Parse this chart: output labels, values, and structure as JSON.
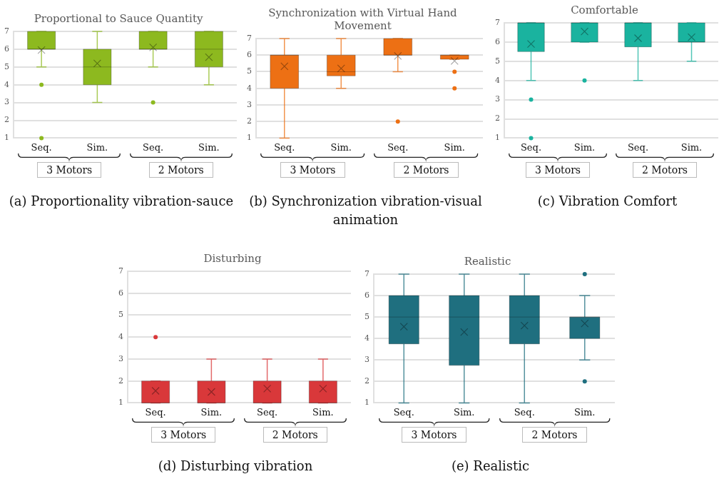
{
  "chart_data": [
    {
      "type": "box",
      "title": "Proportional to Sauce Quantity",
      "categories": [
        "Seq.",
        "Sim.",
        "Seq.",
        "Sim."
      ],
      "color": "#8db91f",
      "ylim": [
        1,
        7
      ],
      "yticks": [
        1,
        2,
        3,
        4,
        5,
        6,
        7
      ],
      "grid": "y",
      "boxes": [
        {
          "low": 5,
          "q1": 6,
          "median": 6,
          "q3": 7,
          "high": 7,
          "mean": 5.95,
          "outliers": [
            4,
            1
          ]
        },
        {
          "low": 3,
          "q1": 4,
          "median": 5,
          "q3": 6,
          "high": 7,
          "mean": 5.2
        },
        {
          "low": 5,
          "q1": 6,
          "median": 6,
          "q3": 7,
          "high": 7,
          "mean": 6.1,
          "outliers": [
            3
          ]
        },
        {
          "low": 4,
          "q1": 5,
          "median": 6,
          "q3": 7,
          "high": 7,
          "mean": 5.55
        }
      ],
      "annotations": [
        "3 Motors",
        "2 Motors",
        "(a) Proportionality vibration-sauce"
      ]
    },
    {
      "type": "box",
      "title": "Synchronization with Virtual Hand Movement",
      "categories": [
        "Seq.",
        "Sim.",
        "Seq.",
        "Sim."
      ],
      "color": "#ed7014",
      "ylim": [
        1,
        7
      ],
      "yticks": [
        1,
        2,
        3,
        4,
        5,
        6,
        7
      ],
      "grid": "y",
      "boxes": [
        {
          "low": 1,
          "q1": 4,
          "median": 6,
          "q3": 6,
          "high": 7,
          "mean": 5.33
        },
        {
          "low": 4,
          "q1": 4.75,
          "median": 5,
          "q3": 6,
          "high": 7,
          "mean": 5.2
        },
        {
          "low": 5,
          "q1": 6,
          "median": 6,
          "q3": 7,
          "high": 7,
          "mean": 5.95,
          "outliers": [
            2
          ]
        },
        {
          "low": 5.75,
          "q1": 5.75,
          "median": 6,
          "q3": 6,
          "high": 6,
          "mean": 5.65,
          "outliers": [
            5,
            4
          ]
        }
      ],
      "annotations": [
        "3 Motors",
        "2 Motors",
        "(b) Synchronization vibration-visual animation"
      ]
    },
    {
      "type": "box",
      "title": "Comfortable",
      "categories": [
        "Seq.",
        "Sim.",
        "Seq.",
        "Sim."
      ],
      "color": "#1ab39f",
      "ylim": [
        1,
        7
      ],
      "yticks": [
        1,
        2,
        3,
        4,
        5,
        6,
        7
      ],
      "grid": "y",
      "boxes": [
        {
          "low": 4,
          "q1": 5.5,
          "median": 7,
          "q3": 7,
          "high": 7,
          "mean": 5.9,
          "outliers": [
            3,
            1
          ]
        },
        {
          "low": 6,
          "q1": 6,
          "median": 7,
          "q3": 7,
          "high": 7,
          "mean": 6.55,
          "outliers": [
            4
          ]
        },
        {
          "low": 4,
          "q1": 5.75,
          "median": 7,
          "q3": 7,
          "high": 7,
          "mean": 6.2
        },
        {
          "low": 5,
          "q1": 6,
          "median": 6,
          "q3": 7,
          "high": 7,
          "mean": 6.25
        }
      ],
      "annotations": [
        "3 Motors",
        "2 Motors",
        "(c) Vibration Comfort"
      ]
    },
    {
      "type": "box",
      "title": "Disturbing",
      "categories": [
        "Seq.",
        "Sim.",
        "Seq.",
        "Sim."
      ],
      "color": "#d9383a",
      "ylim": [
        1,
        7
      ],
      "yticks": [
        1,
        2,
        3,
        4,
        5,
        6,
        7
      ],
      "grid": "y",
      "boxes": [
        {
          "low": 1,
          "q1": 1,
          "median": 1,
          "q3": 2,
          "high": 2,
          "mean": 1.55,
          "outliers": [
            4
          ]
        },
        {
          "low": 1,
          "q1": 1,
          "median": 1,
          "q3": 2,
          "high": 3,
          "mean": 1.5
        },
        {
          "low": 1,
          "q1": 1,
          "median": 1,
          "q3": 2,
          "high": 3,
          "mean": 1.65
        },
        {
          "low": 1,
          "q1": 1,
          "median": 1,
          "q3": 2,
          "high": 3,
          "mean": 1.65
        }
      ],
      "annotations": [
        "3 Motors",
        "2 Motors",
        "(d) Disturbing vibration"
      ]
    },
    {
      "type": "box",
      "title": "Realistic",
      "categories": [
        "Seq.",
        "Sim.",
        "Seq.",
        "Sim."
      ],
      "color": "#1f6f7f",
      "ylim": [
        1,
        7
      ],
      "yticks": [
        1,
        2,
        3,
        4,
        5,
        6,
        7
      ],
      "grid": "y",
      "boxes": [
        {
          "low": 1,
          "q1": 3.75,
          "median": 5,
          "q3": 6,
          "high": 7,
          "mean": 4.55
        },
        {
          "low": 1,
          "q1": 2.75,
          "median": 5,
          "q3": 6,
          "high": 7,
          "mean": 4.3
        },
        {
          "low": 1,
          "q1": 3.75,
          "median": 5,
          "q3": 6,
          "high": 7,
          "mean": 4.6
        },
        {
          "low": 3,
          "q1": 4,
          "median": 5,
          "q3": 5,
          "high": 6,
          "mean": 4.7,
          "outliers": [
            7,
            2
          ]
        }
      ],
      "annotations": [
        "3 Motors",
        "2 Motors",
        "(e) Realistic"
      ]
    }
  ]
}
